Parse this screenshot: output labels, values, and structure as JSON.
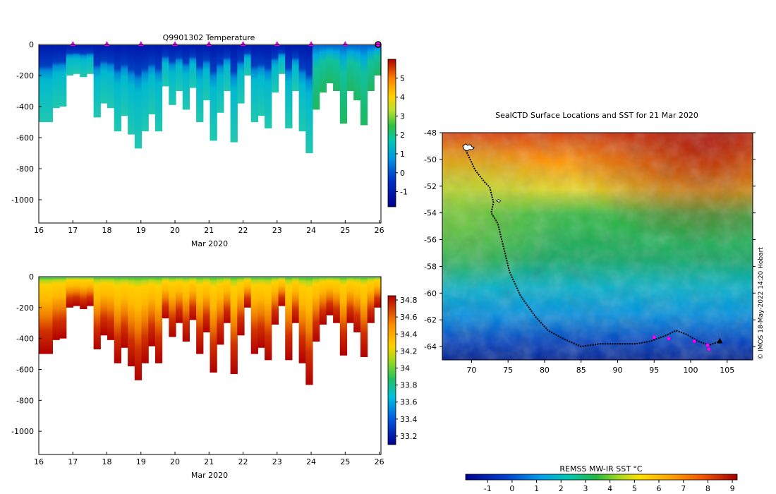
{
  "chart_data": [
    {
      "type": "heatmap",
      "title": "Q9901302  Temperature",
      "xlabel": "Mar 2020",
      "ylabel": "",
      "x_ticks": [
        "16",
        "17",
        "18",
        "19",
        "20",
        "21",
        "22",
        "23",
        "24",
        "25",
        "26"
      ],
      "xlim": [
        16,
        26.05
      ],
      "y_ticks": [
        "0",
        "-200",
        "-400",
        "-600",
        "-800",
        "-1000"
      ],
      "ylim": [
        -1150,
        0
      ],
      "colorbar": {
        "ticks": [
          "5",
          "4",
          "3",
          "2",
          "1",
          "0",
          "-1"
        ],
        "range": [
          -1.8,
          6
        ]
      },
      "surface_markers": [
        17,
        18,
        19,
        20,
        21,
        22,
        23,
        24,
        25
      ],
      "profiles_max_depth": [
        [
          16.0,
          -500
        ],
        [
          16.1,
          -500
        ],
        [
          16.2,
          -410
        ],
        [
          16.3,
          -400
        ],
        [
          16.4,
          -200
        ],
        [
          16.5,
          -190
        ],
        [
          16.6,
          -210
        ],
        [
          16.7,
          -190
        ],
        [
          16.8,
          -470
        ],
        [
          16.9,
          -380
        ],
        [
          17.0,
          -410
        ],
        [
          17.1,
          -560
        ],
        [
          17.2,
          -460
        ],
        [
          17.3,
          -580
        ],
        [
          17.4,
          -670
        ],
        [
          17.5,
          -560
        ],
        [
          17.6,
          -450
        ],
        [
          17.7,
          -560
        ],
        [
          17.8,
          -270
        ],
        [
          17.9,
          -390
        ],
        [
          18.0,
          -300
        ],
        [
          18.1,
          -420
        ],
        [
          18.2,
          -280
        ],
        [
          18.3,
          -500
        ],
        [
          18.4,
          -360
        ],
        [
          18.5,
          -620
        ],
        [
          18.6,
          -440
        ],
        [
          18.7,
          -300
        ],
        [
          18.8,
          -630
        ],
        [
          18.9,
          -380
        ],
        [
          19.0,
          -200
        ],
        [
          19.1,
          -500
        ],
        [
          19.2,
          -460
        ],
        [
          19.3,
          -540
        ],
        [
          19.4,
          -310
        ],
        [
          19.5,
          -190
        ],
        [
          19.6,
          -540
        ],
        [
          19.7,
          -300
        ],
        [
          19.8,
          -560
        ],
        [
          19.9,
          -700
        ],
        [
          20.0,
          -420
        ],
        [
          20.1,
          -310
        ],
        [
          20.2,
          -250
        ],
        [
          20.3,
          -300
        ],
        [
          20.4,
          -510
        ],
        [
          20.5,
          -300
        ],
        [
          20.6,
          -360
        ],
        [
          20.7,
          -520
        ],
        [
          20.8,
          -300
        ],
        [
          20.9,
          -200
        ]
      ]
    },
    {
      "type": "heatmap",
      "title": "",
      "xlabel": "Mar 2020",
      "ylabel": "",
      "x_ticks": [
        "16",
        "17",
        "18",
        "19",
        "20",
        "21",
        "22",
        "23",
        "24",
        "25",
        "26"
      ],
      "xlim": [
        16,
        26.05
      ],
      "y_ticks": [
        "0",
        "-200",
        "-400",
        "-600",
        "-800",
        "-1000"
      ],
      "ylim": [
        -1150,
        0
      ],
      "colorbar": {
        "ticks": [
          "34.8",
          "34.6",
          "34.4",
          "34.2",
          "34",
          "33.8",
          "33.6",
          "33.4",
          "33.2"
        ],
        "range": [
          33.1,
          34.85
        ]
      }
    },
    {
      "type": "heatmap",
      "title": "SealCTD Surface Locations and SST for 21 Mar 2020",
      "xlabel": "",
      "ylabel": "",
      "x_ticks": [
        "70",
        "75",
        "80",
        "85",
        "90",
        "95",
        "100",
        "105"
      ],
      "xlim": [
        66,
        108.5
      ],
      "y_ticks": [
        "-48",
        "-50",
        "-52",
        "-54",
        "-56",
        "-58",
        "-60",
        "-62",
        "-64"
      ],
      "ylim": [
        -65,
        -48
      ],
      "colorbar": {
        "label": "REMSS MW-IR SST °C",
        "ticks": [
          "-1",
          "0",
          "1",
          "2",
          "3",
          "4",
          "5",
          "6",
          "7",
          "8",
          "9"
        ],
        "range": [
          -1.9,
          9.2
        ]
      },
      "track": [
        [
          69.2,
          -49.3
        ],
        [
          70.5,
          -50.8
        ],
        [
          71.8,
          -51.7
        ],
        [
          72.5,
          -52.1
        ],
        [
          73.0,
          -53.2
        ],
        [
          72.7,
          -54.0
        ],
        [
          73.6,
          -54.8
        ],
        [
          74.4,
          -56.6
        ],
        [
          75.2,
          -58.4
        ],
        [
          76.7,
          -60.2
        ],
        [
          78.8,
          -61.8
        ],
        [
          80.5,
          -62.8
        ],
        [
          82.5,
          -63.4
        ],
        [
          85.0,
          -64.0
        ],
        [
          87.5,
          -63.8
        ],
        [
          90.0,
          -63.8
        ],
        [
          92.5,
          -63.8
        ],
        [
          94.5,
          -63.6
        ],
        [
          95.5,
          -63.4
        ],
        [
          96.5,
          -63.2
        ],
        [
          98.0,
          -62.8
        ],
        [
          99.5,
          -63.1
        ],
        [
          101.0,
          -63.6
        ],
        [
          102.5,
          -63.9
        ],
        [
          104.0,
          -63.6
        ]
      ],
      "surface_locations": [
        [
          95.0,
          -63.3
        ],
        [
          97.0,
          -63.4
        ],
        [
          100.5,
          -63.6
        ],
        [
          102.3,
          -63.9
        ],
        [
          102.5,
          -64.2
        ]
      ],
      "credit": "© IMOS 18-May-2022 14:20 Hobart"
    }
  ]
}
